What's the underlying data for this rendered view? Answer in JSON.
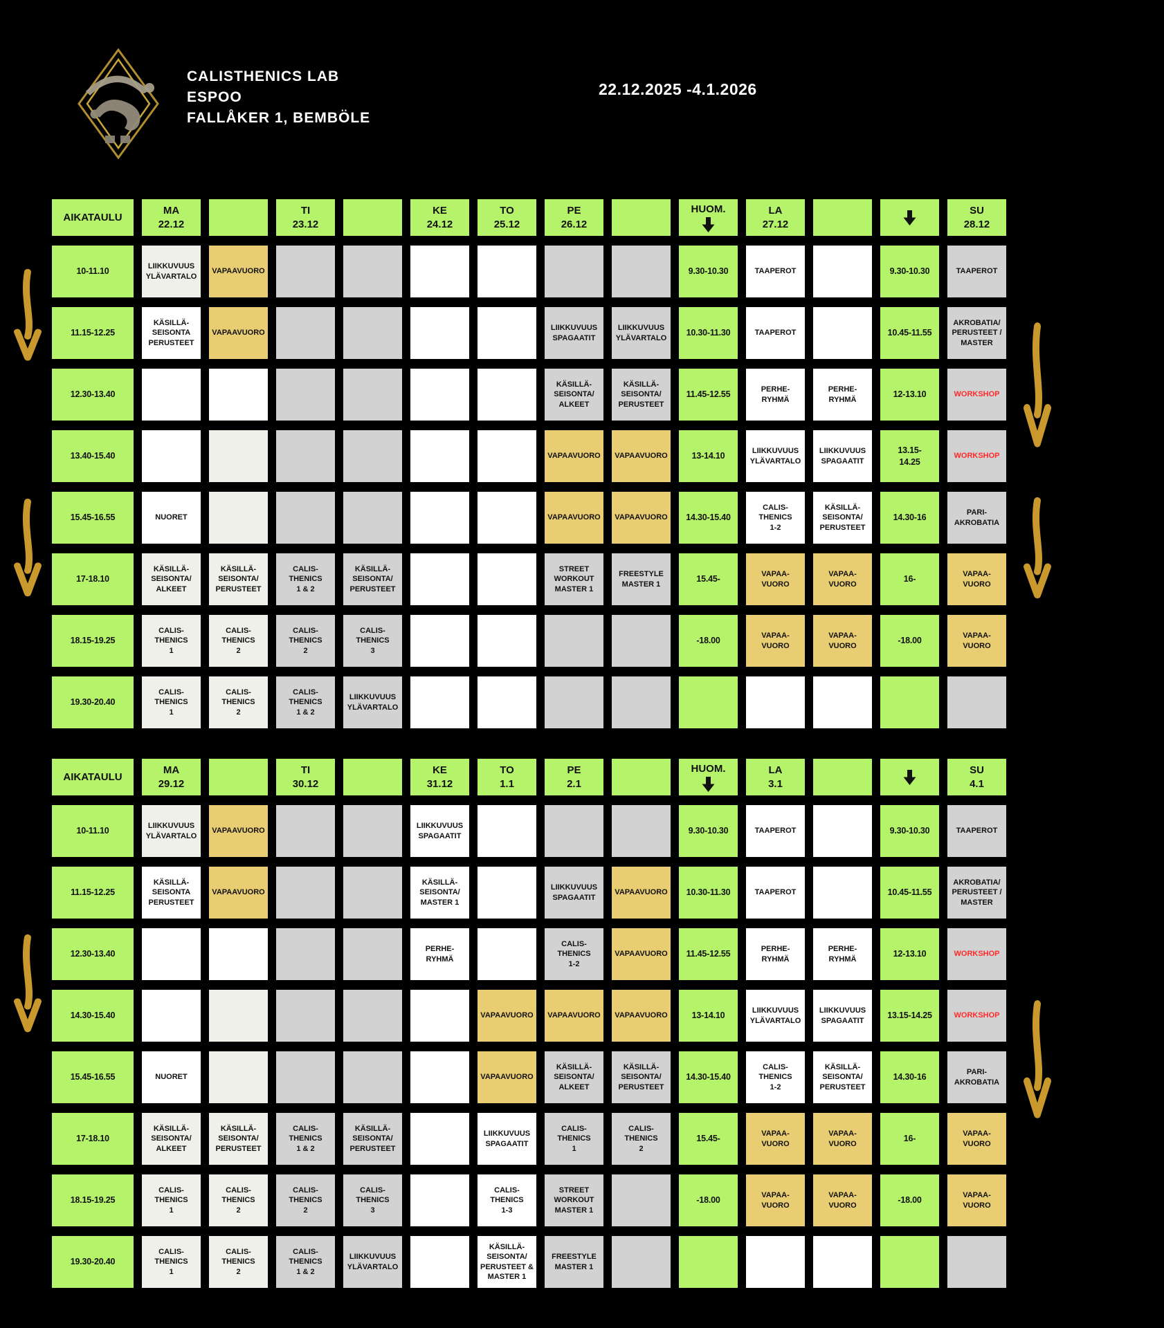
{
  "header": {
    "title_lines": [
      "CALISTHENICS LAB",
      "ESPOO",
      "FALLÅKER 1, BEMBÖLE"
    ],
    "date_range": "22.12.2025 -4.1.2026"
  },
  "colors": {
    "green": "#b5f36a",
    "yellow": "#e9cd72",
    "gray": "#d2d2d2",
    "white": "#ffffff",
    "offwhite": "#f0f0ea",
    "workshop_red": "#ff2a2a",
    "gold_arrow": "#c9992e",
    "background": "#000000"
  },
  "icons": {
    "down_arrow": "black-down-arrow",
    "side_arrow": "gold-hand-drawn-down-arrow"
  },
  "weeks": [
    {
      "header": [
        {
          "key": "aikataulu",
          "label": "AIKATAULU"
        },
        {
          "key": "ma",
          "label": "MA",
          "date": "22.12"
        },
        {
          "key": "spacer-1"
        },
        {
          "key": "ti",
          "label": "TI",
          "date": "23.12"
        },
        {
          "key": "spacer-2"
        },
        {
          "key": "ke",
          "label": "KE",
          "date": "24.12"
        },
        {
          "key": "to",
          "label": "TO",
          "date": "25.12"
        },
        {
          "key": "pe",
          "label": "PE",
          "date": "26.12"
        },
        {
          "key": "spacer-3"
        },
        {
          "key": "huom",
          "label": "HUOM.",
          "arrow": true
        },
        {
          "key": "la",
          "label": "LA",
          "date": "27.12"
        },
        {
          "key": "spacer-4"
        },
        {
          "key": "arrow-col",
          "arrow": true
        },
        {
          "key": "su",
          "label": "SU",
          "date": "28.12"
        }
      ],
      "rows": [
        {
          "time": "10-11.10",
          "cells": [
            [
              "LIIKKUVUUS\nYLÄVARTALO",
              "o"
            ],
            [
              "VAPAAVUORO",
              "y"
            ],
            [
              "",
              "g"
            ],
            [
              "",
              "g"
            ],
            [
              "",
              "w"
            ],
            [
              "",
              "w"
            ],
            [
              "",
              "g"
            ],
            [
              "",
              "g"
            ],
            [
              "9.30-10.30",
              "n"
            ],
            [
              "TAAPEROT",
              "w"
            ],
            [
              "",
              "w"
            ],
            [
              "9.30-10.30",
              "n"
            ],
            [
              "TAAPEROT",
              "g"
            ]
          ]
        },
        {
          "time": "11.15-12.25",
          "cells": [
            [
              "KÄSILLÄ-\nSEISONTA\nPERUSTEET",
              "w"
            ],
            [
              "VAPAAVUORO",
              "y"
            ],
            [
              "",
              "g"
            ],
            [
              "",
              "g"
            ],
            [
              "",
              "w"
            ],
            [
              "",
              "w"
            ],
            [
              "LIIKKUVUUS\nSPAGAATIT",
              "g"
            ],
            [
              "LIIKKUVUUS\nYLÄVARTALO",
              "g"
            ],
            [
              "10.30-11.30",
              "n"
            ],
            [
              "TAAPEROT",
              "w"
            ],
            [
              "",
              "w"
            ],
            [
              "10.45-11.55",
              "n"
            ],
            [
              "AKROBATIA/\nPERUSTEET /\nMASTER",
              "g"
            ]
          ]
        },
        {
          "time": "12.30-13.40",
          "cells": [
            [
              "",
              "w"
            ],
            [
              "",
              "w"
            ],
            [
              "",
              "g"
            ],
            [
              "",
              "g"
            ],
            [
              "",
              "w"
            ],
            [
              "",
              "w"
            ],
            [
              "KÄSILLÄ-\nSEISONTA/\nALKEET",
              "g"
            ],
            [
              "KÄSILLÄ-\nSEISONTA/\nPERUSTEET",
              "g"
            ],
            [
              "11.45-12.55",
              "n"
            ],
            [
              "PERHE-\nRYHMÄ",
              "w"
            ],
            [
              "PERHE-\nRYHMÄ",
              "w"
            ],
            [
              "12-13.10",
              "n"
            ],
            [
              "WORKSHOP",
              "g",
              "red"
            ]
          ]
        },
        {
          "time": "13.40-15.40",
          "cells": [
            [
              "",
              "w"
            ],
            [
              "",
              "o"
            ],
            [
              "",
              "g"
            ],
            [
              "",
              "g"
            ],
            [
              "",
              "w"
            ],
            [
              "",
              "w"
            ],
            [
              "VAPAAVUORO",
              "y"
            ],
            [
              "VAPAAVUORO",
              "y"
            ],
            [
              "13-14.10",
              "n"
            ],
            [
              "LIIKKUVUUS\nYLÄVARTALO",
              "w"
            ],
            [
              "LIIKKUVUUS\nSPAGAATIT",
              "w"
            ],
            [
              "13.15-\n14.25",
              "n"
            ],
            [
              "WORKSHOP",
              "g",
              "red"
            ]
          ]
        },
        {
          "time": "15.45-16.55",
          "cells": [
            [
              "NUORET",
              "w"
            ],
            [
              "",
              "o"
            ],
            [
              "",
              "g"
            ],
            [
              "",
              "g"
            ],
            [
              "",
              "w"
            ],
            [
              "",
              "w"
            ],
            [
              "VAPAAVUORO",
              "y"
            ],
            [
              "VAPAAVUORO",
              "y"
            ],
            [
              "14.30-15.40",
              "n"
            ],
            [
              "CALIS-\nTHENICS\n1-2",
              "w"
            ],
            [
              "KÄSILLÄ-\nSEISONTA/\nPERUSTEET",
              "w"
            ],
            [
              "14.30-16",
              "n"
            ],
            [
              "PARI-\nAKROBATIA",
              "g"
            ]
          ]
        },
        {
          "time": "17-18.10",
          "cells": [
            [
              "KÄSILLÄ-\nSEISONTA/\nALKEET",
              "o"
            ],
            [
              "KÄSILLÄ-\nSEISONTA/\nPERUSTEET",
              "o"
            ],
            [
              "CALIS-\nTHENICS\n1 & 2",
              "g"
            ],
            [
              "KÄSILLÄ-\nSEISONTA/\nPERUSTEET",
              "g"
            ],
            [
              "",
              "w"
            ],
            [
              "",
              "w"
            ],
            [
              "STREET\nWORKOUT\nMASTER 1",
              "g"
            ],
            [
              "FREESTYLE\nMASTER 1",
              "g"
            ],
            [
              "15.45-",
              "n"
            ],
            [
              "VAPAA-\nVUORO",
              "y"
            ],
            [
              "VAPAA-\nVUORO",
              "y"
            ],
            [
              "16-",
              "n"
            ],
            [
              "VAPAA-\nVUORO",
              "y"
            ]
          ]
        },
        {
          "time": "18.15-19.25",
          "cells": [
            [
              "CALIS-\nTHENICS\n1",
              "o"
            ],
            [
              "CALIS-\nTHENICS\n2",
              "o"
            ],
            [
              "CALIS-\nTHENICS\n2",
              "g"
            ],
            [
              "CALIS-\nTHENICS\n3",
              "g"
            ],
            [
              "",
              "w"
            ],
            [
              "",
              "w"
            ],
            [
              "",
              "g"
            ],
            [
              "",
              "g"
            ],
            [
              "-18.00",
              "n"
            ],
            [
              "VAPAA-\nVUORO",
              "y"
            ],
            [
              "VAPAA-\nVUORO",
              "y"
            ],
            [
              "-18.00",
              "n"
            ],
            [
              "VAPAA-\nVUORO",
              "y"
            ]
          ]
        },
        {
          "time": "19.30-20.40",
          "cells": [
            [
              "CALIS-\nTHENICS\n1",
              "o"
            ],
            [
              "CALIS-\nTHENICS\n2",
              "o"
            ],
            [
              "CALIS-\nTHENICS\n1 & 2",
              "g"
            ],
            [
              "LIIKKUVUUS\nYLÄVARTALO",
              "g"
            ],
            [
              "",
              "w"
            ],
            [
              "",
              "w"
            ],
            [
              "",
              "g"
            ],
            [
              "",
              "g"
            ],
            [
              "",
              "n"
            ],
            [
              "",
              "w"
            ],
            [
              "",
              "w"
            ],
            [
              "",
              "n"
            ],
            [
              "",
              "g"
            ]
          ]
        }
      ]
    },
    {
      "header": [
        {
          "key": "aikataulu",
          "label": "AIKATAULU"
        },
        {
          "key": "ma",
          "label": "MA",
          "date": "29.12"
        },
        {
          "key": "spacer-1"
        },
        {
          "key": "ti",
          "label": "TI",
          "date": "30.12"
        },
        {
          "key": "spacer-2"
        },
        {
          "key": "ke",
          "label": "KE",
          "date": "31.12"
        },
        {
          "key": "to",
          "label": "TO",
          "date": "1.1"
        },
        {
          "key": "pe",
          "label": "PE",
          "date": "2.1"
        },
        {
          "key": "spacer-3"
        },
        {
          "key": "huom",
          "label": "HUOM.",
          "arrow": true
        },
        {
          "key": "la",
          "label": "LA",
          "date": "3.1"
        },
        {
          "key": "spacer-4"
        },
        {
          "key": "arrow-col",
          "arrow": true
        },
        {
          "key": "su",
          "label": "SU",
          "date": "4.1"
        }
      ],
      "rows": [
        {
          "time": "10-11.10",
          "cells": [
            [
              "LIIKKUVUUS\nYLÄVARTALO",
              "o"
            ],
            [
              "VAPAAVUORO",
              "y"
            ],
            [
              "",
              "g"
            ],
            [
              "",
              "g"
            ],
            [
              "LIIKKUVUUS\nSPAGAATIT",
              "w"
            ],
            [
              "",
              "w"
            ],
            [
              "",
              "g"
            ],
            [
              "",
              "g"
            ],
            [
              "9.30-10.30",
              "n"
            ],
            [
              "TAAPEROT",
              "w"
            ],
            [
              "",
              "w"
            ],
            [
              "9.30-10.30",
              "n"
            ],
            [
              "TAAPEROT",
              "g"
            ]
          ]
        },
        {
          "time": "11.15-12.25",
          "cells": [
            [
              "KÄSILLÄ-\nSEISONTA\nPERUSTEET",
              "w"
            ],
            [
              "VAPAAVUORO",
              "y"
            ],
            [
              "",
              "g"
            ],
            [
              "",
              "g"
            ],
            [
              "KÄSILLÄ-\nSEISONTA/\nMASTER 1",
              "w"
            ],
            [
              "",
              "w"
            ],
            [
              "LIIKKUVUUS\nSPAGAATIT",
              "g"
            ],
            [
              "VAPAAVUORO",
              "y"
            ],
            [
              "10.30-11.30",
              "n"
            ],
            [
              "TAAPEROT",
              "w"
            ],
            [
              "",
              "w"
            ],
            [
              "10.45-11.55",
              "n"
            ],
            [
              "AKROBATIA/\nPERUSTEET /\nMASTER",
              "g"
            ]
          ]
        },
        {
          "time": "12.30-13.40",
          "cells": [
            [
              "",
              "w"
            ],
            [
              "",
              "w"
            ],
            [
              "",
              "g"
            ],
            [
              "",
              "g"
            ],
            [
              "PERHE-\nRYHMÄ",
              "w"
            ],
            [
              "",
              "w"
            ],
            [
              "CALIS-\nTHENICS\n1-2",
              "g"
            ],
            [
              "VAPAAVUORO",
              "y"
            ],
            [
              "11.45-12.55",
              "n"
            ],
            [
              "PERHE-\nRYHMÄ",
              "w"
            ],
            [
              "PERHE-\nRYHMÄ",
              "w"
            ],
            [
              "12-13.10",
              "n"
            ],
            [
              "WORKSHOP",
              "g",
              "red"
            ]
          ]
        },
        {
          "time": "14.30-15.40",
          "cells": [
            [
              "",
              "w"
            ],
            [
              "",
              "o"
            ],
            [
              "",
              "g"
            ],
            [
              "",
              "g"
            ],
            [
              "",
              "w"
            ],
            [
              "VAPAAVUORO",
              "y"
            ],
            [
              "VAPAAVUORO",
              "y"
            ],
            [
              "VAPAAVUORO",
              "y"
            ],
            [
              "13-14.10",
              "n"
            ],
            [
              "LIIKKUVUUS\nYLÄVARTALO",
              "w"
            ],
            [
              "LIIKKUVUUS\nSPAGAATIT",
              "w"
            ],
            [
              "13.15-14.25",
              "n"
            ],
            [
              "WORKSHOP",
              "g",
              "red"
            ]
          ]
        },
        {
          "time": "15.45-16.55",
          "cells": [
            [
              "NUORET",
              "w"
            ],
            [
              "",
              "o"
            ],
            [
              "",
              "g"
            ],
            [
              "",
              "g"
            ],
            [
              "",
              "w"
            ],
            [
              "VAPAAVUORO",
              "y"
            ],
            [
              "KÄSILLÄ-\nSEISONTA/\nALKEET",
              "g"
            ],
            [
              "KÄSILLÄ-\nSEISONTA/\nPERUSTEET",
              "g"
            ],
            [
              "14.30-15.40",
              "n"
            ],
            [
              "CALIS-\nTHENICS\n1-2",
              "w"
            ],
            [
              "KÄSILLÄ-\nSEISONTA/\nPERUSTEET",
              "w"
            ],
            [
              "14.30-16",
              "n"
            ],
            [
              "PARI-\nAKROBATIA",
              "g"
            ]
          ]
        },
        {
          "time": "17-18.10",
          "cells": [
            [
              "KÄSILLÄ-\nSEISONTA/\nALKEET",
              "o"
            ],
            [
              "KÄSILLÄ-\nSEISONTA/\nPERUSTEET",
              "o"
            ],
            [
              "CALIS-\nTHENICS\n1 & 2",
              "g"
            ],
            [
              "KÄSILLÄ-\nSEISONTA/\nPERUSTEET",
              "g"
            ],
            [
              "",
              "w"
            ],
            [
              "LIIKKUVUUS\nSPAGAATIT",
              "w"
            ],
            [
              "CALIS-\nTHENICS\n1",
              "g"
            ],
            [
              "CALIS-\nTHENICS\n2",
              "g"
            ],
            [
              "15.45-",
              "n"
            ],
            [
              "VAPAA-\nVUORO",
              "y"
            ],
            [
              "VAPAA-\nVUORO",
              "y"
            ],
            [
              "16-",
              "n"
            ],
            [
              "VAPAA-\nVUORO",
              "y"
            ]
          ]
        },
        {
          "time": "18.15-19.25",
          "cells": [
            [
              "CALIS-\nTHENICS\n1",
              "o"
            ],
            [
              "CALIS-\nTHENICS\n2",
              "o"
            ],
            [
              "CALIS-\nTHENICS\n2",
              "g"
            ],
            [
              "CALIS-\nTHENICS\n3",
              "g"
            ],
            [
              "",
              "w"
            ],
            [
              "CALIS-\nTHENICS\n1-3",
              "w"
            ],
            [
              "STREET\nWORKOUT\nMASTER 1",
              "g"
            ],
            [
              "",
              "g"
            ],
            [
              "-18.00",
              "n"
            ],
            [
              "VAPAA-\nVUORO",
              "y"
            ],
            [
              "VAPAA-\nVUORO",
              "y"
            ],
            [
              "-18.00",
              "n"
            ],
            [
              "VAPAA-\nVUORO",
              "y"
            ]
          ]
        },
        {
          "time": "19.30-20.40",
          "cells": [
            [
              "CALIS-\nTHENICS\n1",
              "o"
            ],
            [
              "CALIS-\nTHENICS\n2",
              "o"
            ],
            [
              "CALIS-\nTHENICS\n1 & 2",
              "g"
            ],
            [
              "LIIKKUVUUS\nYLÄVARTALO",
              "g"
            ],
            [
              "",
              "w"
            ],
            [
              "KÄSILLÄ-\nSEISONTA/\nPERUSTEET &\nMASTER 1",
              "w"
            ],
            [
              "FREESTYLE\nMASTER 1",
              "g"
            ],
            [
              "",
              "g"
            ],
            [
              "",
              "n"
            ],
            [
              "",
              "w"
            ],
            [
              "",
              "w"
            ],
            [
              "",
              "n"
            ],
            [
              "",
              "g"
            ]
          ]
        }
      ]
    }
  ]
}
